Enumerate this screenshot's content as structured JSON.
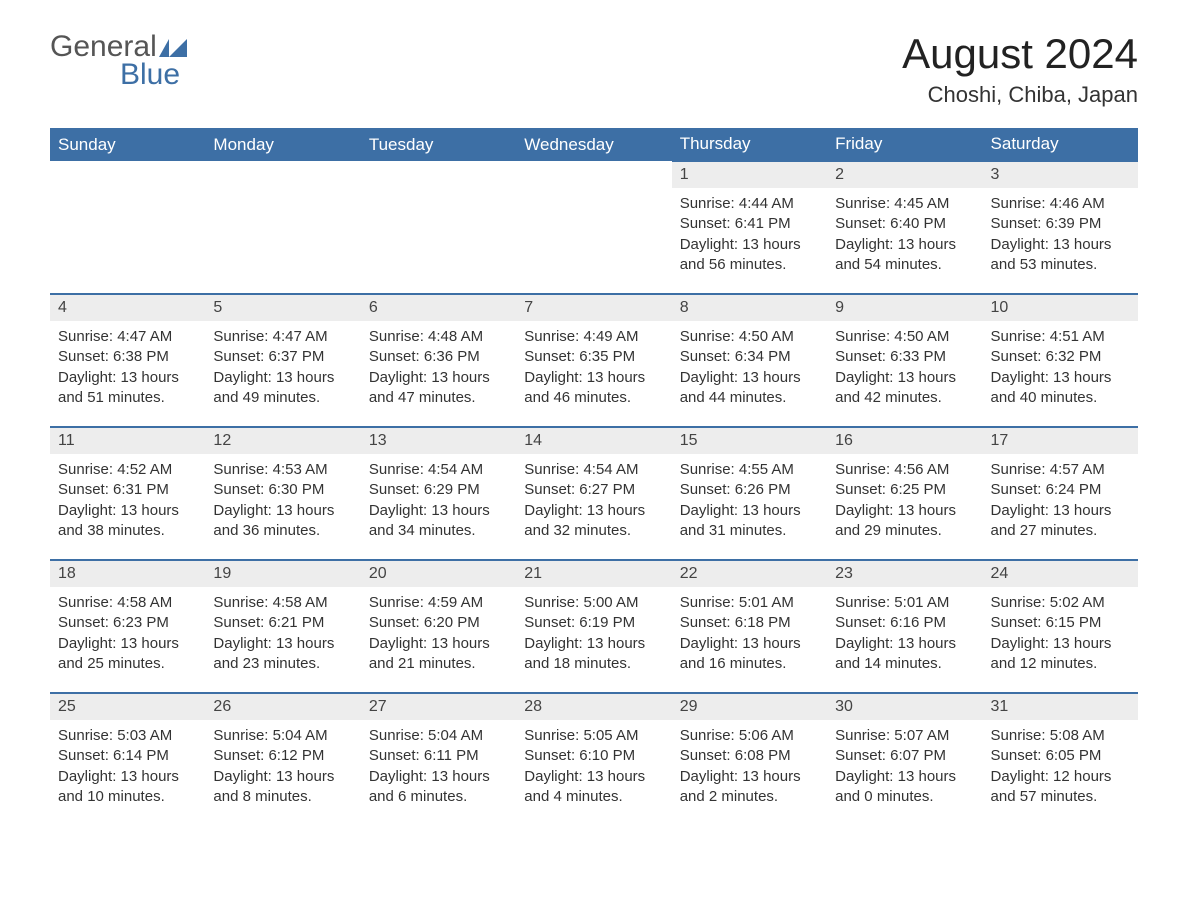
{
  "logo": {
    "general": "General",
    "blue": "Blue",
    "accent_color": "#3d6fa5"
  },
  "title": "August 2024",
  "location": "Choshi, Chiba, Japan",
  "colors": {
    "header_bg": "#3d6fa5",
    "header_text": "#ffffff",
    "daynum_bg": "#ededed",
    "row_border": "#3d6fa5",
    "body_text": "#333333",
    "page_bg": "#ffffff"
  },
  "weekdays": [
    "Sunday",
    "Monday",
    "Tuesday",
    "Wednesday",
    "Thursday",
    "Friday",
    "Saturday"
  ],
  "weeks": [
    [
      null,
      null,
      null,
      null,
      {
        "n": "1",
        "sr": "Sunrise: 4:44 AM",
        "ss": "Sunset: 6:41 PM",
        "dl": "Daylight: 13 hours and 56 minutes."
      },
      {
        "n": "2",
        "sr": "Sunrise: 4:45 AM",
        "ss": "Sunset: 6:40 PM",
        "dl": "Daylight: 13 hours and 54 minutes."
      },
      {
        "n": "3",
        "sr": "Sunrise: 4:46 AM",
        "ss": "Sunset: 6:39 PM",
        "dl": "Daylight: 13 hours and 53 minutes."
      }
    ],
    [
      {
        "n": "4",
        "sr": "Sunrise: 4:47 AM",
        "ss": "Sunset: 6:38 PM",
        "dl": "Daylight: 13 hours and 51 minutes."
      },
      {
        "n": "5",
        "sr": "Sunrise: 4:47 AM",
        "ss": "Sunset: 6:37 PM",
        "dl": "Daylight: 13 hours and 49 minutes."
      },
      {
        "n": "6",
        "sr": "Sunrise: 4:48 AM",
        "ss": "Sunset: 6:36 PM",
        "dl": "Daylight: 13 hours and 47 minutes."
      },
      {
        "n": "7",
        "sr": "Sunrise: 4:49 AM",
        "ss": "Sunset: 6:35 PM",
        "dl": "Daylight: 13 hours and 46 minutes."
      },
      {
        "n": "8",
        "sr": "Sunrise: 4:50 AM",
        "ss": "Sunset: 6:34 PM",
        "dl": "Daylight: 13 hours and 44 minutes."
      },
      {
        "n": "9",
        "sr": "Sunrise: 4:50 AM",
        "ss": "Sunset: 6:33 PM",
        "dl": "Daylight: 13 hours and 42 minutes."
      },
      {
        "n": "10",
        "sr": "Sunrise: 4:51 AM",
        "ss": "Sunset: 6:32 PM",
        "dl": "Daylight: 13 hours and 40 minutes."
      }
    ],
    [
      {
        "n": "11",
        "sr": "Sunrise: 4:52 AM",
        "ss": "Sunset: 6:31 PM",
        "dl": "Daylight: 13 hours and 38 minutes."
      },
      {
        "n": "12",
        "sr": "Sunrise: 4:53 AM",
        "ss": "Sunset: 6:30 PM",
        "dl": "Daylight: 13 hours and 36 minutes."
      },
      {
        "n": "13",
        "sr": "Sunrise: 4:54 AM",
        "ss": "Sunset: 6:29 PM",
        "dl": "Daylight: 13 hours and 34 minutes."
      },
      {
        "n": "14",
        "sr": "Sunrise: 4:54 AM",
        "ss": "Sunset: 6:27 PM",
        "dl": "Daylight: 13 hours and 32 minutes."
      },
      {
        "n": "15",
        "sr": "Sunrise: 4:55 AM",
        "ss": "Sunset: 6:26 PM",
        "dl": "Daylight: 13 hours and 31 minutes."
      },
      {
        "n": "16",
        "sr": "Sunrise: 4:56 AM",
        "ss": "Sunset: 6:25 PM",
        "dl": "Daylight: 13 hours and 29 minutes."
      },
      {
        "n": "17",
        "sr": "Sunrise: 4:57 AM",
        "ss": "Sunset: 6:24 PM",
        "dl": "Daylight: 13 hours and 27 minutes."
      }
    ],
    [
      {
        "n": "18",
        "sr": "Sunrise: 4:58 AM",
        "ss": "Sunset: 6:23 PM",
        "dl": "Daylight: 13 hours and 25 minutes."
      },
      {
        "n": "19",
        "sr": "Sunrise: 4:58 AM",
        "ss": "Sunset: 6:21 PM",
        "dl": "Daylight: 13 hours and 23 minutes."
      },
      {
        "n": "20",
        "sr": "Sunrise: 4:59 AM",
        "ss": "Sunset: 6:20 PM",
        "dl": "Daylight: 13 hours and 21 minutes."
      },
      {
        "n": "21",
        "sr": "Sunrise: 5:00 AM",
        "ss": "Sunset: 6:19 PM",
        "dl": "Daylight: 13 hours and 18 minutes."
      },
      {
        "n": "22",
        "sr": "Sunrise: 5:01 AM",
        "ss": "Sunset: 6:18 PM",
        "dl": "Daylight: 13 hours and 16 minutes."
      },
      {
        "n": "23",
        "sr": "Sunrise: 5:01 AM",
        "ss": "Sunset: 6:16 PM",
        "dl": "Daylight: 13 hours and 14 minutes."
      },
      {
        "n": "24",
        "sr": "Sunrise: 5:02 AM",
        "ss": "Sunset: 6:15 PM",
        "dl": "Daylight: 13 hours and 12 minutes."
      }
    ],
    [
      {
        "n": "25",
        "sr": "Sunrise: 5:03 AM",
        "ss": "Sunset: 6:14 PM",
        "dl": "Daylight: 13 hours and 10 minutes."
      },
      {
        "n": "26",
        "sr": "Sunrise: 5:04 AM",
        "ss": "Sunset: 6:12 PM",
        "dl": "Daylight: 13 hours and 8 minutes."
      },
      {
        "n": "27",
        "sr": "Sunrise: 5:04 AM",
        "ss": "Sunset: 6:11 PM",
        "dl": "Daylight: 13 hours and 6 minutes."
      },
      {
        "n": "28",
        "sr": "Sunrise: 5:05 AM",
        "ss": "Sunset: 6:10 PM",
        "dl": "Daylight: 13 hours and 4 minutes."
      },
      {
        "n": "29",
        "sr": "Sunrise: 5:06 AM",
        "ss": "Sunset: 6:08 PM",
        "dl": "Daylight: 13 hours and 2 minutes."
      },
      {
        "n": "30",
        "sr": "Sunrise: 5:07 AM",
        "ss": "Sunset: 6:07 PM",
        "dl": "Daylight: 13 hours and 0 minutes."
      },
      {
        "n": "31",
        "sr": "Sunrise: 5:08 AM",
        "ss": "Sunset: 6:05 PM",
        "dl": "Daylight: 12 hours and 57 minutes."
      }
    ]
  ]
}
